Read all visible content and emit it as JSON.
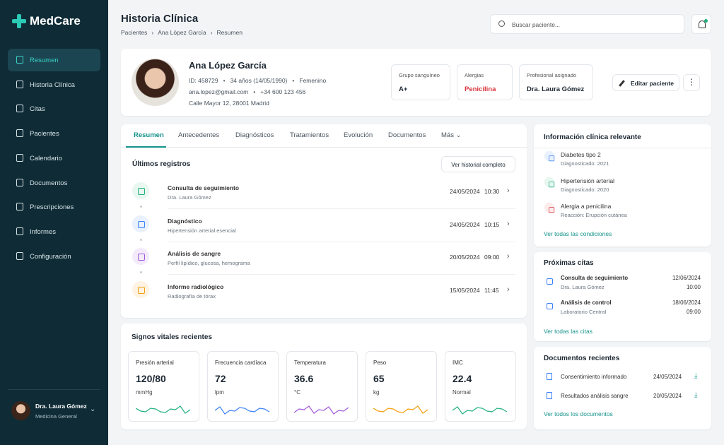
{
  "brand": "MedCare",
  "nav": [
    "Resumen",
    "Historia Clínica",
    "Citas",
    "Pacientes",
    "Calendario",
    "Documentos",
    "Prescripciones",
    "Informes",
    "Configuración"
  ],
  "user": {
    "name": "Dra. Laura Gómez",
    "role": "Medicina General"
  },
  "header": {
    "title": "Historia Clínica",
    "breadcrumb": [
      "Pacientes",
      "Ana López García",
      "Resumen"
    ],
    "search_placeholder": "Buscar paciente..."
  },
  "patient": {
    "name": "Ana López García",
    "id": "ID: 458729",
    "age": "34 años (14/05/1990)",
    "sex": "Femenino",
    "email": "ana.lopez@gmail.com",
    "phone": "+34 600 123 456",
    "address": "Calle Mayor 12, 28001 Madrid",
    "info": [
      {
        "label": "Grupo sanguíneo",
        "value": "A+"
      },
      {
        "label": "Alergias",
        "value": "Penicilina"
      },
      {
        "label": "Profesional asignado",
        "value": "Dra. Laura Gómez"
      }
    ],
    "edit": "Editar paciente"
  },
  "tabs": [
    "Resumen",
    "Antecedentes",
    "Diagnósticos",
    "Tratamientos",
    "Evolución",
    "Documentos",
    "Más"
  ],
  "records": {
    "title": "Últimos registros",
    "button": "Ver historial completo",
    "items": [
      {
        "title": "Consulta de seguimiento",
        "subtitle": "Dra. Laura Gómez",
        "date": "24/05/2024",
        "time": "10:30"
      },
      {
        "title": "Diagnóstico",
        "subtitle": "Hipertensión arterial esencial",
        "date": "24/05/2024",
        "time": "10:15"
      },
      {
        "title": "Análisis de sangre",
        "subtitle": "Perfil lipídico, glucosa, hemograma",
        "date": "20/05/2024",
        "time": "09:00"
      },
      {
        "title": "Informe radiológico",
        "subtitle": "Radiografía de tórax",
        "date": "15/05/2024",
        "time": "11:45"
      }
    ]
  },
  "vitals": {
    "title": "Signos vitales recientes",
    "items": [
      {
        "label": "Presión arterial",
        "value": "120/80",
        "unit": "mmHg"
      },
      {
        "label": "Frecuencia cardíaca",
        "value": "72",
        "unit": "lpm"
      },
      {
        "label": "Temperatura",
        "value": "36.6",
        "unit": "°C"
      },
      {
        "label": "Peso",
        "value": "65",
        "unit": "kg"
      },
      {
        "label": "IMC",
        "value": "22.4",
        "unit": "Normal"
      }
    ]
  },
  "clinical": {
    "title": "Información clínica relevante",
    "items": [
      {
        "title": "Diabetes tipo 2",
        "subtitle": "Diagnosticado: 2021"
      },
      {
        "title": "Hipertensión arterial",
        "subtitle": "Diagnosticado: 2020"
      },
      {
        "title": "Alergia a penicilina",
        "subtitle": "Reacción: Erupción cutánea"
      }
    ],
    "link": "Ver todas las condiciones"
  },
  "appointments": {
    "title": "Próximas citas",
    "items": [
      {
        "title": "Consulta de seguimiento",
        "subtitle": "Dra. Laura Gómez",
        "date": "12/06/2024",
        "time": "10:00"
      },
      {
        "title": "Análisis de control",
        "subtitle": "Laboratorio Central",
        "date": "18/06/2024",
        "time": "09:00"
      }
    ],
    "link": "Ver todas las citas"
  },
  "documents": {
    "title": "Documentos recientes",
    "items": [
      {
        "title": "Consentimiento informado",
        "date": "24/05/2024"
      },
      {
        "title": "Resultados análisis sangre",
        "date": "20/05/2024"
      }
    ],
    "link": "Ver todos los documentos"
  }
}
